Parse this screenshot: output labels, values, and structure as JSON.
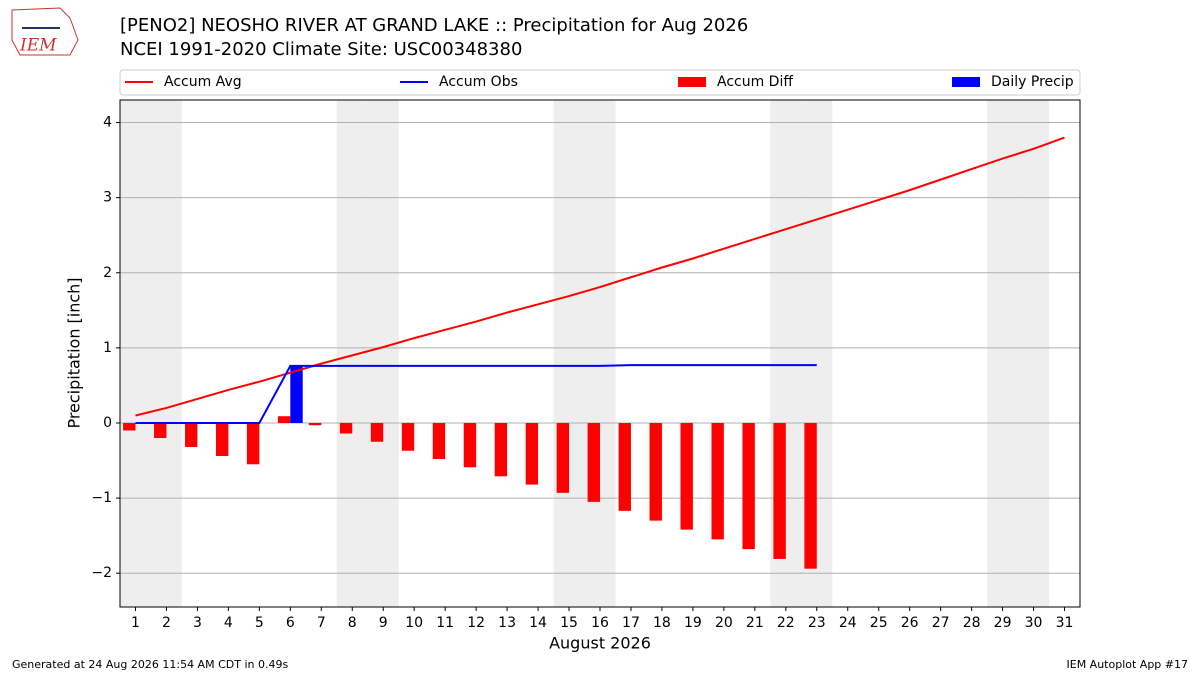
{
  "chart_data": {
    "type": "line",
    "title": "[PENO2] NEOSHO RIVER  AT GRAND LAKE :: Precipitation for Aug 2026",
    "subtitle": "NCEI 1991-2020 Climate Site: USC00348380",
    "logo_text": "IEM",
    "xlabel": "August 2026",
    "ylabel": "Precipitation [inch]",
    "footer_left": "Generated at 24 Aug 2026 11:54 AM CDT in 0.49s",
    "footer_right": "IEM Autoplot App #17",
    "x": [
      1,
      2,
      3,
      4,
      5,
      6,
      7,
      8,
      9,
      10,
      11,
      12,
      13,
      14,
      15,
      16,
      17,
      18,
      19,
      20,
      21,
      22,
      23,
      24,
      25,
      26,
      27,
      28,
      29,
      30,
      31
    ],
    "xlim": [
      0.5,
      31.5
    ],
    "xticks": [
      1,
      2,
      3,
      4,
      5,
      6,
      7,
      8,
      9,
      10,
      11,
      12,
      13,
      14,
      15,
      16,
      17,
      18,
      19,
      20,
      21,
      22,
      23,
      24,
      25,
      26,
      27,
      28,
      29,
      30,
      31
    ],
    "ylim": [
      -2.45,
      4.3
    ],
    "yticks": [
      {
        "value": -2,
        "label": "−2"
      },
      {
        "value": -1,
        "label": "−1"
      },
      0,
      1,
      2,
      3,
      4
    ],
    "grid": true,
    "shaded_days": [
      1,
      2,
      8,
      9,
      15,
      16,
      22,
      23,
      29,
      30
    ],
    "shade_color": "#eeeeee",
    "legend": "top",
    "series": [
      {
        "name": "Accum Avg",
        "type": "line",
        "color": "#ff0000",
        "values": [
          0.1,
          0.2,
          0.32,
          0.44,
          0.55,
          0.67,
          0.79,
          0.9,
          1.01,
          1.13,
          1.24,
          1.35,
          1.47,
          1.58,
          1.69,
          1.81,
          1.94,
          2.07,
          2.19,
          2.32,
          2.45,
          2.58,
          2.71,
          2.84,
          2.97,
          3.1,
          3.24,
          3.38,
          3.52,
          3.65,
          3.8
        ]
      },
      {
        "name": "Accum Obs",
        "type": "line",
        "color": "#0000ff",
        "values": [
          0,
          0,
          0,
          0,
          0,
          0.76,
          0.76,
          0.76,
          0.76,
          0.76,
          0.76,
          0.76,
          0.76,
          0.76,
          0.76,
          0.76,
          0.77,
          0.77,
          0.77,
          0.77,
          0.77,
          0.77,
          0.77,
          null,
          null,
          null,
          null,
          null,
          null,
          null,
          null
        ]
      },
      {
        "name": "Accum Diff",
        "type": "bar",
        "side": "left",
        "color": "#ff0000",
        "values": [
          -0.1,
          -0.2,
          -0.32,
          -0.44,
          -0.55,
          0.09,
          -0.03,
          -0.14,
          -0.25,
          -0.37,
          -0.48,
          -0.59,
          -0.71,
          -0.82,
          -0.93,
          -1.05,
          -1.17,
          -1.3,
          -1.42,
          -1.55,
          -1.68,
          -1.81,
          -1.94,
          null,
          null,
          null,
          null,
          null,
          null,
          null,
          null
        ]
      },
      {
        "name": "Daily Precip",
        "type": "bar",
        "side": "right",
        "color": "#0000ff",
        "values": [
          0,
          0,
          0,
          0,
          0,
          0.76,
          0,
          0,
          0,
          0,
          0,
          0,
          0,
          0,
          0,
          0,
          0,
          0,
          0,
          0,
          0,
          0,
          0,
          null,
          null,
          null,
          null,
          null,
          null,
          null,
          null
        ]
      }
    ]
  }
}
